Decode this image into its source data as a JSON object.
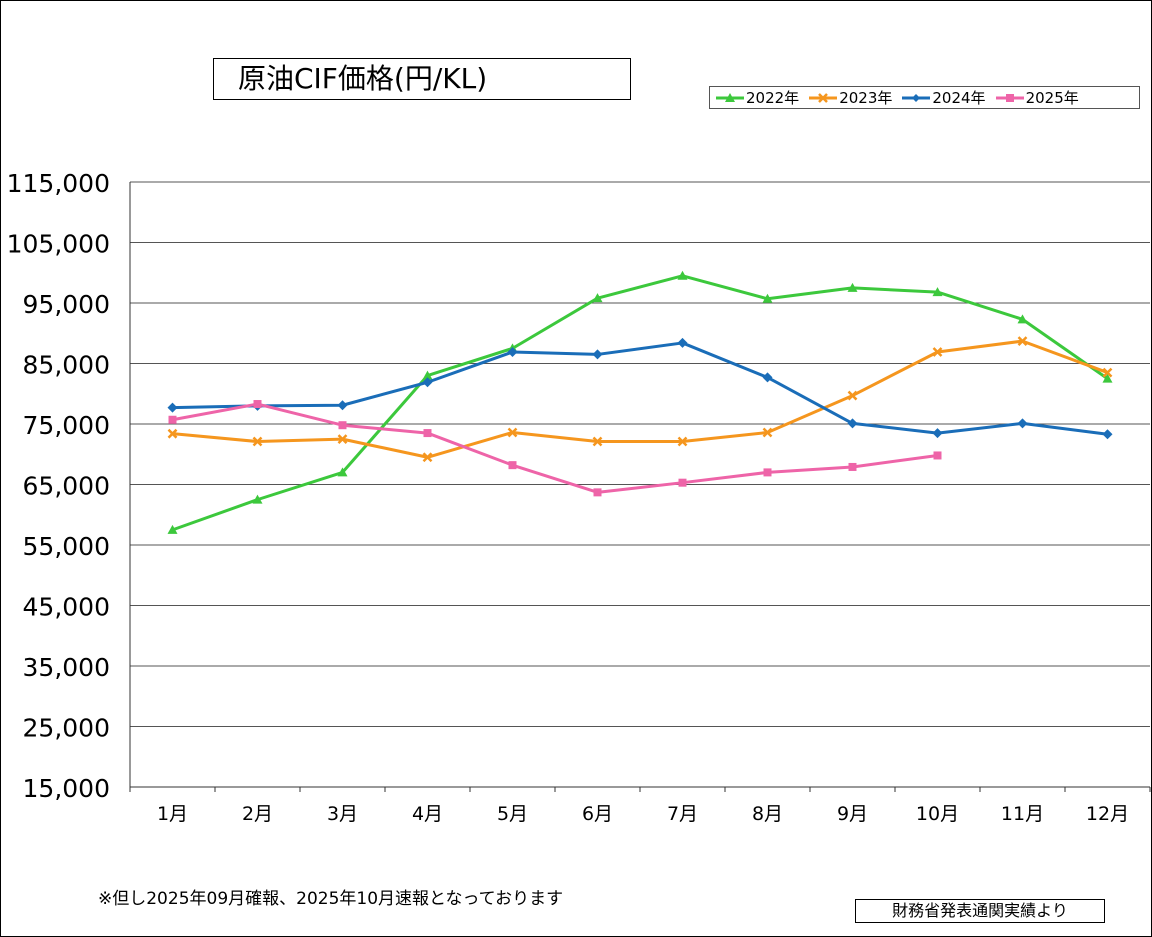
{
  "chart_data": {
    "type": "line",
    "title": "原油CIF価格(円/KL)",
    "categories": [
      "1月",
      "2月",
      "3月",
      "4月",
      "5月",
      "6月",
      "7月",
      "8月",
      "9月",
      "10月",
      "11月",
      "12月"
    ],
    "ylim": [
      15000,
      115000
    ],
    "yticks": [
      15000,
      25000,
      35000,
      45000,
      55000,
      65000,
      75000,
      85000,
      95000,
      105000,
      115000
    ],
    "ytick_labels": [
      "15,000",
      "25,000",
      "35,000",
      "45,000",
      "55,000",
      "65,000",
      "75,000",
      "85,000",
      "95,000",
      "105,000",
      "115,000"
    ],
    "grid": true,
    "legend_position": "top-right",
    "series": [
      {
        "name": "2022年",
        "color": "#3cc83c",
        "marker": "triangle",
        "values": [
          57500,
          62500,
          67000,
          83000,
          87500,
          95800,
          99500,
          95700,
          97500,
          96800,
          92300,
          82500
        ]
      },
      {
        "name": "2023年",
        "color": "#f5961e",
        "marker": "x",
        "values": [
          73400,
          72100,
          72500,
          69500,
          73600,
          72100,
          72100,
          73600,
          79700,
          86900,
          88700,
          83500
        ]
      },
      {
        "name": "2024年",
        "color": "#1a6db8",
        "marker": "diamond",
        "values": [
          77700,
          78000,
          78100,
          81900,
          86900,
          86500,
          88400,
          82700,
          75100,
          73500,
          75100,
          73300
        ]
      },
      {
        "name": "2025年",
        "color": "#ee64a8",
        "marker": "square",
        "values": [
          75700,
          78300,
          74800,
          73500,
          68200,
          63700,
          65300,
          67000,
          67900,
          69800,
          null,
          null
        ]
      }
    ]
  },
  "note": "※但し2025年09月確報、2025年10月速報となっております",
  "source": "財務省発表通関実績より"
}
